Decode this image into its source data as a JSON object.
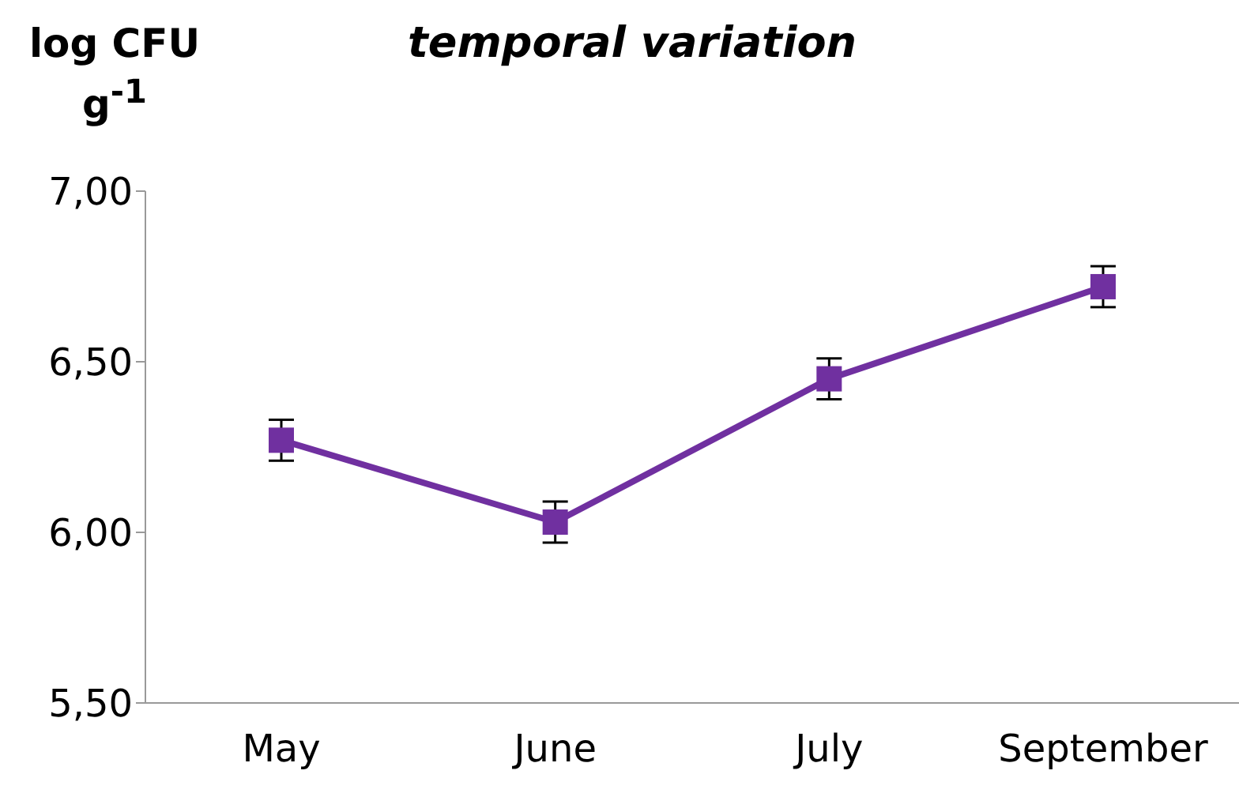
{
  "chart_data": {
    "type": "line",
    "title": "temporal variation",
    "ylabel": "log CFU g$^{-1}$",
    "categories": [
      "May",
      "June",
      "July",
      "September"
    ],
    "series": [
      {
        "color": "#7030a0",
        "values": [
          6.27,
          6.03,
          6.45,
          6.72
        ],
        "errors": [
          0.06,
          0.06,
          0.06,
          0.06
        ]
      }
    ],
    "ylim": [
      5.5,
      7
    ],
    "yticks": [
      {
        "value": 5.5,
        "label": "5,50"
      },
      {
        "value": 6,
        "label": "6,00"
      },
      {
        "value": 6.5,
        "label": "6,50"
      },
      {
        "value": 7,
        "label": "7,00"
      }
    ],
    "marker": "square",
    "line_style": "solid"
  }
}
